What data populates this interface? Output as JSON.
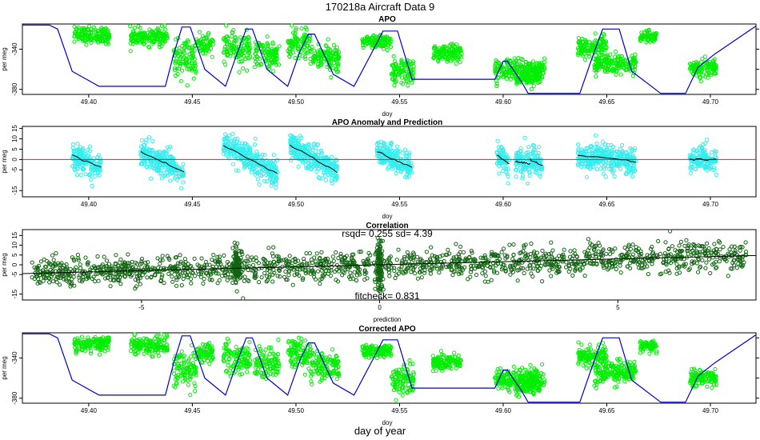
{
  "figure": {
    "title": "170218a   Aircraft Data 9",
    "footer_label": "day of year"
  },
  "chart_data": [
    {
      "type": "scatter",
      "title": "APO",
      "xlabel": "doy",
      "ylabel": "per meg",
      "xlim": [
        49.368,
        49.722
      ],
      "ylim": [
        -385,
        -315
      ],
      "xticks": [
        "49.40",
        "49.45",
        "49.50",
        "49.55",
        "49.60",
        "49.65",
        "49.70"
      ],
      "yticks": [
        "-340",
        "-380"
      ],
      "point_color": "#00ee00",
      "line_color": "#0000cc",
      "clusters": [
        {
          "x0": 49.393,
          "x1": 49.41,
          "y": -326,
          "sd": 4
        },
        {
          "x0": 49.42,
          "x1": 49.438,
          "y": -328,
          "sd": 4
        },
        {
          "x0": 49.441,
          "x1": 49.452,
          "y": -350,
          "sd": 9
        },
        {
          "x0": 49.452,
          "x1": 49.46,
          "y": -335,
          "sd": 5
        },
        {
          "x0": 49.465,
          "x1": 49.478,
          "y": -340,
          "sd": 8
        },
        {
          "x0": 49.48,
          "x1": 49.492,
          "y": -345,
          "sd": 7
        },
        {
          "x0": 49.496,
          "x1": 49.507,
          "y": -335,
          "sd": 7
        },
        {
          "x0": 49.507,
          "x1": 49.521,
          "y": -348,
          "sd": 7
        },
        {
          "x0": 49.532,
          "x1": 49.546,
          "y": -333,
          "sd": 3
        },
        {
          "x0": 49.546,
          "x1": 49.557,
          "y": -362,
          "sd": 7
        },
        {
          "x0": 49.566,
          "x1": 49.58,
          "y": -344,
          "sd": 4
        },
        {
          "x0": 49.596,
          "x1": 49.62,
          "y": -360,
          "sd": 5
        },
        {
          "x0": 49.606,
          "x1": 49.618,
          "y": -368,
          "sd": 4
        },
        {
          "x0": 49.636,
          "x1": 49.65,
          "y": -338,
          "sd": 5
        },
        {
          "x0": 49.644,
          "x1": 49.664,
          "y": -355,
          "sd": 5
        },
        {
          "x0": 49.666,
          "x1": 49.674,
          "y": -328,
          "sd": 3
        },
        {
          "x0": 49.69,
          "x1": 49.703,
          "y": -360,
          "sd": 4
        }
      ],
      "line_x": [
        49.368,
        49.381,
        49.385,
        49.392,
        49.405,
        49.437,
        49.441,
        49.445,
        49.449,
        49.456,
        49.466,
        49.472,
        49.476,
        49.479,
        49.486,
        49.496,
        49.502,
        49.506,
        49.509,
        49.518,
        49.528,
        49.537,
        49.542,
        49.549,
        49.556,
        49.576,
        49.587,
        49.596,
        49.6,
        49.602,
        49.609,
        49.612,
        49.625,
        49.637,
        49.643,
        49.648,
        49.656,
        49.662,
        49.676,
        49.688,
        49.694,
        49.702,
        49.722
      ],
      "line_y": [
        -316,
        -316,
        -320,
        -362,
        -377,
        -377,
        -345,
        -318,
        -318,
        -360,
        -377,
        -342,
        -320,
        -320,
        -360,
        -377,
        -342,
        -325,
        -325,
        -365,
        -377,
        -342,
        -322,
        -322,
        -370,
        -370,
        -370,
        -370,
        -352,
        -352,
        -373,
        -384,
        -384,
        -384,
        -348,
        -320,
        -320,
        -362,
        -384,
        -384,
        -358,
        -345,
        -317
      ]
    },
    {
      "type": "scatter",
      "title": "APO Anomaly and Prediction",
      "xlabel": "doy",
      "ylabel": "per meg",
      "xlim": [
        49.368,
        49.722
      ],
      "ylim": [
        -18,
        16
      ],
      "xticks": [
        "49.40",
        "49.45",
        "49.50",
        "49.55",
        "49.60",
        "49.65",
        "49.70"
      ],
      "yticks": [
        "-15",
        "-5",
        "0",
        "5",
        "10",
        "15"
      ],
      "point_color": "#33eeee",
      "reference_line": {
        "y": 0,
        "color": "#dd2222"
      },
      "segments": [
        {
          "x0": 49.392,
          "x1": 49.406,
          "y0": 2,
          "y1": -4
        },
        {
          "x0": 49.425,
          "x1": 49.446,
          "y0": 4,
          "y1": -6
        },
        {
          "x0": 49.465,
          "x1": 49.491,
          "y0": 7,
          "y1": -7
        },
        {
          "x0": 49.497,
          "x1": 49.52,
          "y0": 7,
          "y1": -6
        },
        {
          "x0": 49.539,
          "x1": 49.556,
          "y0": 4,
          "y1": -4
        },
        {
          "x0": 49.597,
          "x1": 49.603,
          "y0": 2,
          "y1": -2
        },
        {
          "x0": 49.606,
          "x1": 49.613,
          "y0": -1,
          "y1": -2
        },
        {
          "x0": 49.613,
          "x1": 49.619,
          "y0": 0,
          "y1": -3
        },
        {
          "x0": 49.636,
          "x1": 49.664,
          "y0": 2,
          "y1": -1
        },
        {
          "x0": 49.69,
          "x1": 49.703,
          "y0": 0,
          "y1": 0
        }
      ]
    },
    {
      "type": "scatter",
      "title": "Correlation",
      "subtitle": "rsqd= 0.255 sd= 4.39",
      "annotation": "fitcheck= 0.831",
      "xlabel": "prediction",
      "ylabel": "per meg",
      "xlim": [
        -7.5,
        7.9
      ],
      "ylim": [
        -18,
        18
      ],
      "xticks": [
        "-5",
        "0",
        "5"
      ],
      "yticks": [
        "-15",
        "-5",
        "0",
        "5",
        "10",
        "15"
      ],
      "point_color": "#116611",
      "fit": {
        "slope": 0.6,
        "intercept": 0
      }
    },
    {
      "type": "scatter",
      "title": "Corrected APO",
      "xlabel": "doy",
      "ylabel": "per meg",
      "xlim": [
        49.368,
        49.722
      ],
      "ylim": [
        -385,
        -315
      ],
      "xticks": [
        "49.40",
        "49.45",
        "49.50",
        "49.55",
        "49.60",
        "49.65",
        "49.70"
      ],
      "yticks": [
        "-340",
        "-380"
      ],
      "point_color": "#00ee00",
      "line_color": "#0000cc",
      "same_as_panel": 0
    }
  ]
}
